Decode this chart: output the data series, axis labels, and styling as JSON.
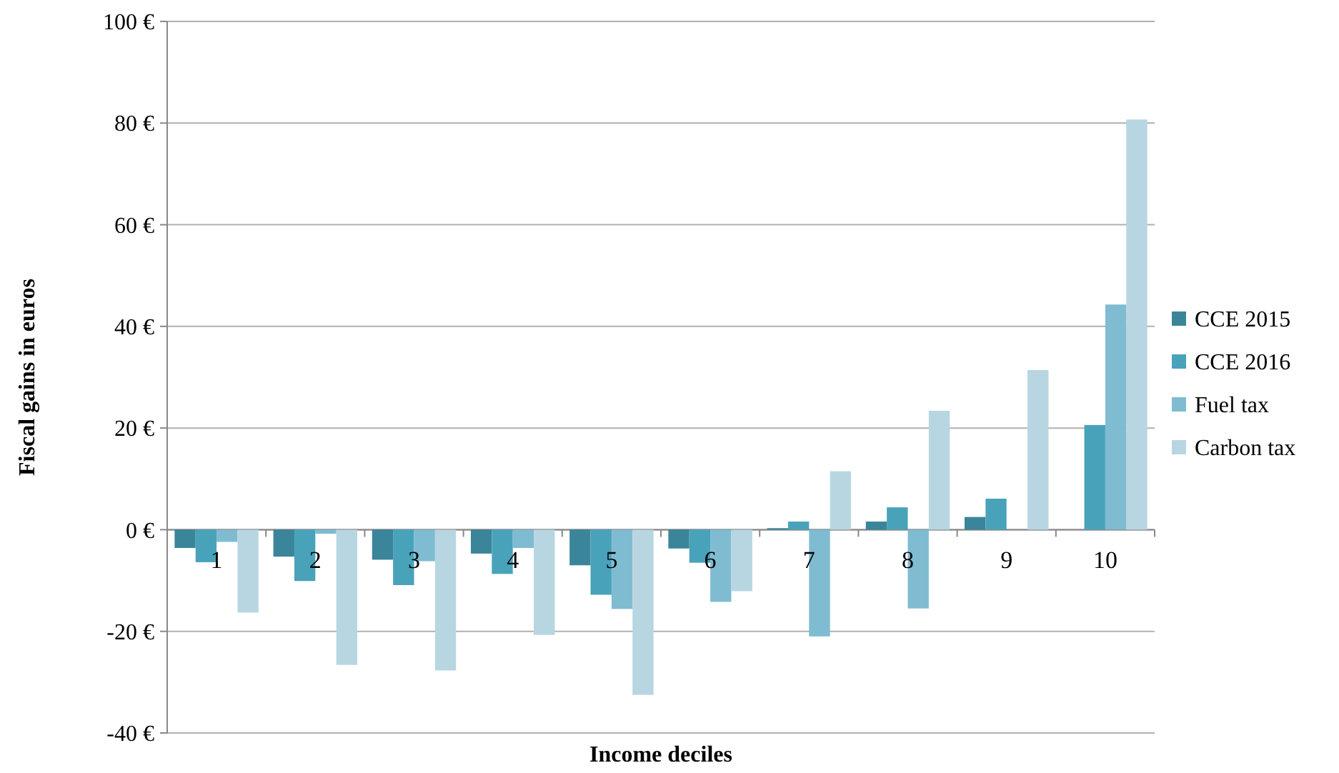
{
  "chart_data": {
    "type": "bar",
    "xlabel": "Income deciles",
    "ylabel": "Fiscal gains in euros",
    "categories": [
      "1",
      "2",
      "3",
      "4",
      "5",
      "6",
      "7",
      "8",
      "9",
      "10"
    ],
    "series": [
      {
        "name": "CCE 2015",
        "color": "#3a8599",
        "values": [
          -3.6,
          -5.3,
          -5.9,
          -4.7,
          -7.0,
          -3.7,
          0.3,
          1.6,
          2.5,
          0
        ]
      },
      {
        "name": "CCE 2016",
        "color": "#48a3ba",
        "values": [
          -6.4,
          -10.1,
          -10.9,
          -8.7,
          -12.8,
          -6.5,
          1.6,
          4.4,
          6.1,
          20.6
        ]
      },
      {
        "name": "Fuel tax",
        "color": "#7fbcd2",
        "values": [
          -2.4,
          -0.8,
          -6.2,
          -3.6,
          -15.6,
          -14.2,
          -21.0,
          -15.5,
          0,
          44.3
        ]
      },
      {
        "name": "Carbon tax",
        "color": "#b7d6e2",
        "values": [
          -16.3,
          -26.6,
          -27.7,
          -20.7,
          -32.5,
          -12.1,
          11.5,
          23.4,
          31.4,
          80.7
        ]
      }
    ],
    "ylim": [
      -40,
      100
    ],
    "yticks": [
      {
        "value": -40,
        "label": "-40 €"
      },
      {
        "value": -20,
        "label": "-20 €"
      },
      {
        "value": 0,
        "label": "0 €"
      },
      {
        "value": 20,
        "label": "20 €"
      },
      {
        "value": 40,
        "label": "40 €"
      },
      {
        "value": 60,
        "label": "60 €"
      },
      {
        "value": 80,
        "label": "80 €"
      },
      {
        "value": 100,
        "label": "100 €"
      }
    ],
    "grid": "y",
    "legend": "right"
  }
}
